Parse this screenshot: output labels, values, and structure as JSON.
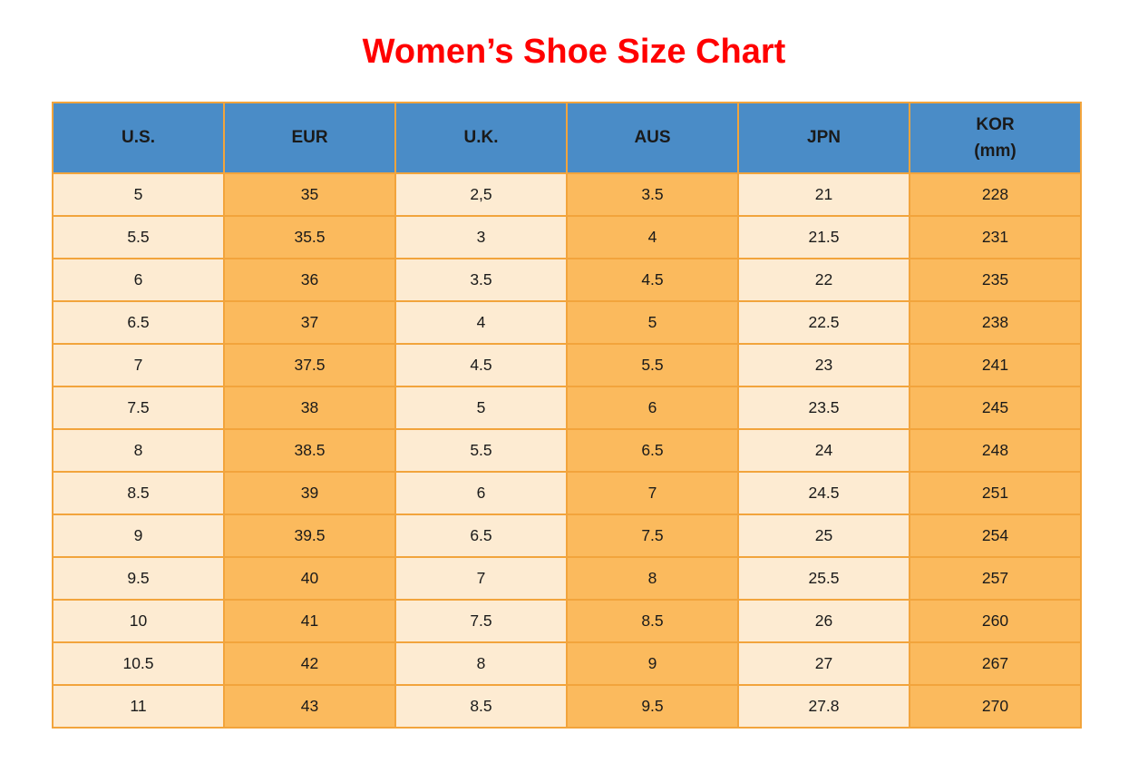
{
  "title": "Women’s Shoe Size Chart",
  "colors": {
    "title_red": "#FF0000",
    "header_blue": "#4A8CC7",
    "border_orange": "#F2A43C",
    "cell_light": "#FDEBD2",
    "cell_dark": "#FBBA5D",
    "cell_text": "#1A1A1A"
  },
  "table": {
    "headers": [
      {
        "line1": "U.S."
      },
      {
        "line1": "EUR"
      },
      {
        "line1": "U.K."
      },
      {
        "line1": "AUS"
      },
      {
        "line1": "JPN"
      },
      {
        "line1": "KOR",
        "line2": "(mm)"
      }
    ],
    "column_shades": [
      "light",
      "dark",
      "light",
      "dark",
      "light",
      "dark"
    ],
    "rows": [
      [
        "5",
        "35",
        "2,5",
        "3.5",
        "21",
        "228"
      ],
      [
        "5.5",
        "35.5",
        "3",
        "4",
        "21.5",
        "231"
      ],
      [
        "6",
        "36",
        "3.5",
        "4.5",
        "22",
        "235"
      ],
      [
        "6.5",
        "37",
        "4",
        "5",
        "22.5",
        "238"
      ],
      [
        "7",
        "37.5",
        "4.5",
        "5.5",
        "23",
        "241"
      ],
      [
        "7.5",
        "38",
        "5",
        "6",
        "23.5",
        "245"
      ],
      [
        "8",
        "38.5",
        "5.5",
        "6.5",
        "24",
        "248"
      ],
      [
        "8.5",
        "39",
        "6",
        "7",
        "24.5",
        "251"
      ],
      [
        "9",
        "39.5",
        "6.5",
        "7.5",
        "25",
        "254"
      ],
      [
        "9.5",
        "40",
        "7",
        "8",
        "25.5",
        "257"
      ],
      [
        "10",
        "41",
        "7.5",
        "8.5",
        "26",
        "260"
      ],
      [
        "10.5",
        "42",
        "8",
        "9",
        "27",
        "267"
      ],
      [
        "11",
        "43",
        "8.5",
        "9.5",
        "27.8",
        "270"
      ]
    ]
  },
  "chart_data": {
    "type": "table",
    "title": "Women’s Shoe Size Chart",
    "columns": [
      "U.S.",
      "EUR",
      "U.K.",
      "AUS",
      "JPN",
      "KOR (mm)"
    ],
    "rows": [
      [
        "5",
        "35",
        "2,5",
        "3.5",
        "21",
        "228"
      ],
      [
        "5.5",
        "35.5",
        "3",
        "4",
        "21.5",
        "231"
      ],
      [
        "6",
        "36",
        "3.5",
        "4.5",
        "22",
        "235"
      ],
      [
        "6.5",
        "37",
        "4",
        "5",
        "22.5",
        "238"
      ],
      [
        "7",
        "37.5",
        "4.5",
        "5.5",
        "23",
        "241"
      ],
      [
        "7.5",
        "38",
        "5",
        "6",
        "23.5",
        "245"
      ],
      [
        "8",
        "38.5",
        "5.5",
        "6.5",
        "24",
        "248"
      ],
      [
        "8.5",
        "39",
        "6",
        "7",
        "24.5",
        "251"
      ],
      [
        "9",
        "39.5",
        "6.5",
        "7.5",
        "25",
        "254"
      ],
      [
        "9.5",
        "40",
        "7",
        "8",
        "25.5",
        "257"
      ],
      [
        "10",
        "41",
        "7.5",
        "8.5",
        "26",
        "260"
      ],
      [
        "10.5",
        "42",
        "8",
        "9",
        "27",
        "267"
      ],
      [
        "11",
        "43",
        "8.5",
        "9.5",
        "27.8",
        "270"
      ]
    ]
  }
}
